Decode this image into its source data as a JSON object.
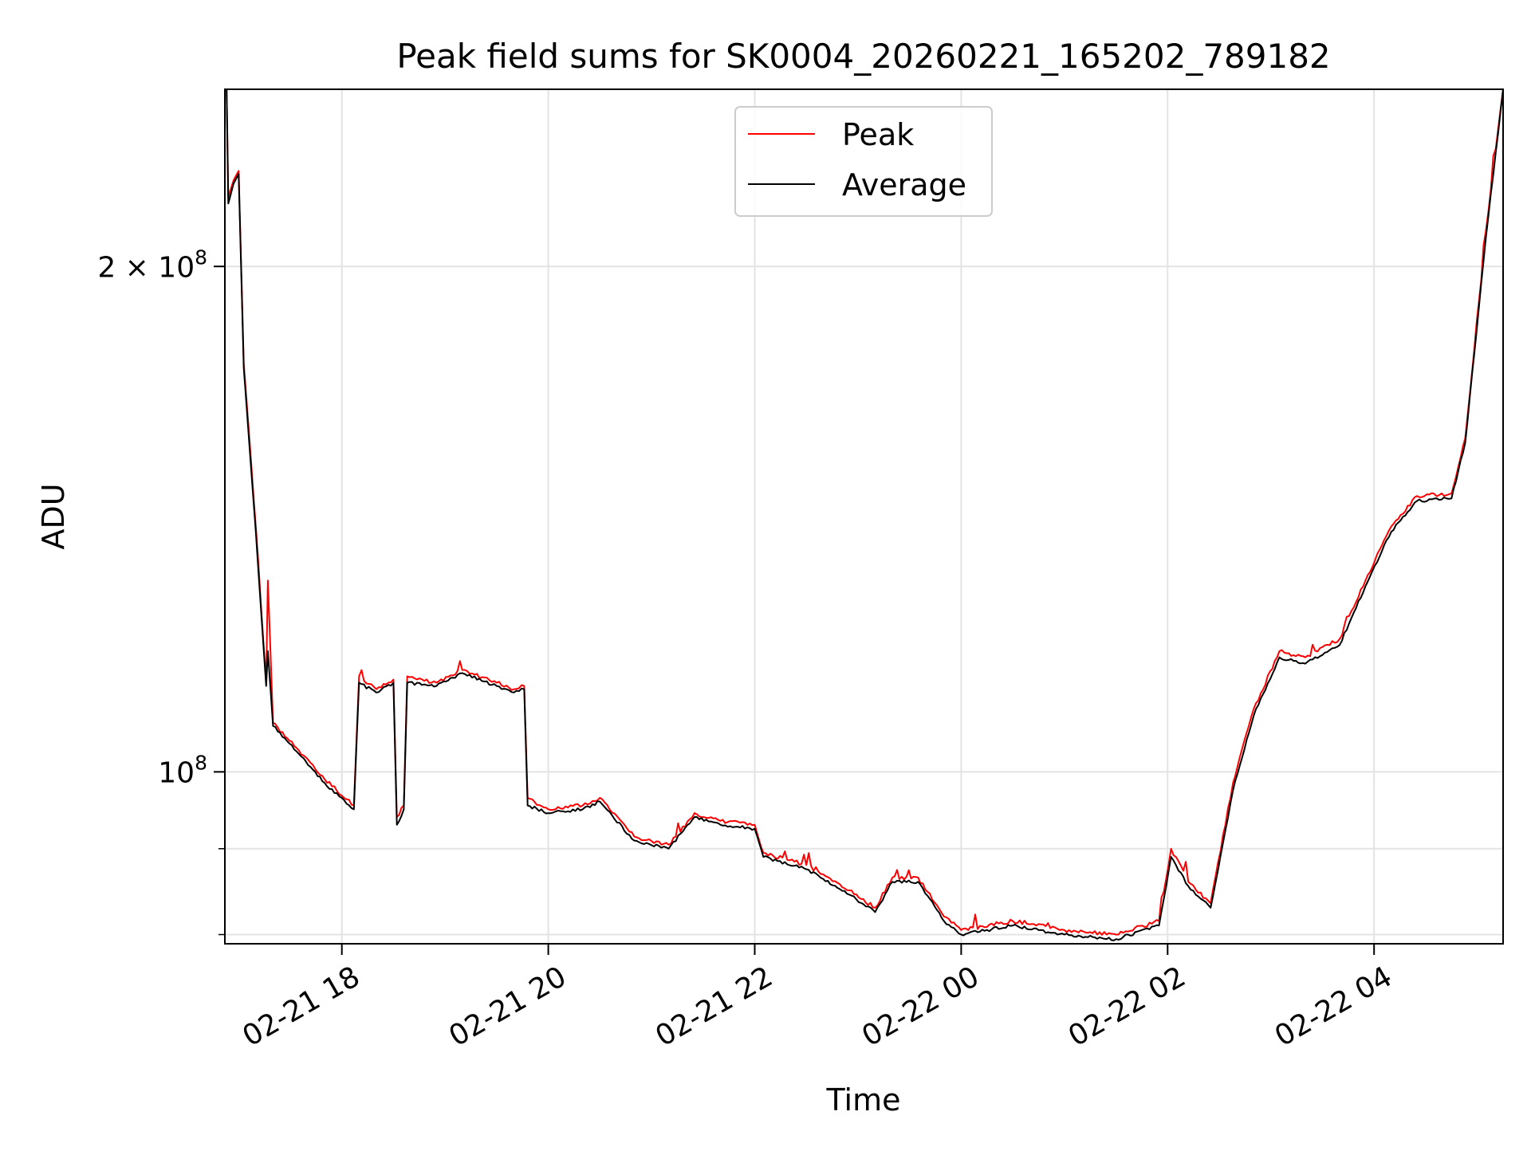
{
  "chart_data": {
    "type": "line",
    "title": "Peak field sums for SK0004_20260221_165202_789182",
    "xlabel": "Time",
    "ylabel": "ADU",
    "y_scale": "log",
    "ylim": [
      79000000,
      255000000
    ],
    "xlim": [
      "2026-02-21 16:52",
      "2026-02-22 05:15"
    ],
    "grid": true,
    "legend_position": "upper center",
    "x_ticks": [
      {
        "t": "2026-02-21 18:00",
        "label": "02-21 18"
      },
      {
        "t": "2026-02-21 20:00",
        "label": "02-21 20"
      },
      {
        "t": "2026-02-21 22:00",
        "label": "02-21 22"
      },
      {
        "t": "2026-02-22 00:00",
        "label": "02-22 00"
      },
      {
        "t": "2026-02-22 02:00",
        "label": "02-22 02"
      },
      {
        "t": "2026-02-22 04:00",
        "label": "02-22 04"
      }
    ],
    "y_major_ticks": [
      {
        "value": 100000000,
        "base": "10",
        "exp": "8"
      },
      {
        "value": 200000000,
        "base": "2 × 10",
        "exp": "8"
      }
    ],
    "y_minor_ticks": [
      90000000,
      80000000
    ],
    "series": [
      {
        "name": "Peak",
        "color": "#ff0000",
        "points": [
          [
            "2026-02-21 16:53",
            255000000
          ],
          [
            "2026-02-21 16:54",
            220000000
          ],
          [
            "2026-02-21 16:57",
            225000000
          ],
          [
            "2026-02-21 17:00",
            228000000
          ],
          [
            "2026-02-21 17:03",
            175000000
          ],
          [
            "2026-02-21 17:10",
            140000000
          ],
          [
            "2026-02-21 17:16",
            113000000
          ],
          [
            "2026-02-21 17:17",
            130000000
          ],
          [
            "2026-02-21 17:20",
            107000000
          ],
          [
            "2026-02-21 17:35",
            103000000
          ],
          [
            "2026-02-21 17:50",
            99000000
          ],
          [
            "2026-02-21 18:07",
            95500000
          ],
          [
            "2026-02-21 18:10",
            114000000
          ],
          [
            "2026-02-21 18:20",
            112000000
          ],
          [
            "2026-02-21 18:30",
            113500000
          ],
          [
            "2026-02-21 18:32",
            94000000
          ],
          [
            "2026-02-21 18:36",
            95500000
          ],
          [
            "2026-02-21 18:38",
            114000000
          ],
          [
            "2026-02-21 18:55",
            113000000
          ],
          [
            "2026-02-21 19:10",
            115000000
          ],
          [
            "2026-02-21 19:30",
            113000000
          ],
          [
            "2026-02-21 19:40",
            112000000
          ],
          [
            "2026-02-21 19:46",
            112500000
          ],
          [
            "2026-02-21 19:48",
            96500000
          ],
          [
            "2026-02-21 20:00",
            95000000
          ],
          [
            "2026-02-21 20:20",
            95500000
          ],
          [
            "2026-02-21 20:30",
            96500000
          ],
          [
            "2026-02-21 20:50",
            91500000
          ],
          [
            "2026-02-21 21:10",
            90500000
          ],
          [
            "2026-02-21 21:25",
            94500000
          ],
          [
            "2026-02-21 21:40",
            93500000
          ],
          [
            "2026-02-21 22:00",
            93000000
          ],
          [
            "2026-02-21 22:05",
            89500000
          ],
          [
            "2026-02-21 22:30",
            88000000
          ],
          [
            "2026-02-21 22:55",
            85000000
          ],
          [
            "2026-02-21 23:10",
            83000000
          ],
          [
            "2026-02-21 23:20",
            86500000
          ],
          [
            "2026-02-21 23:35",
            86500000
          ],
          [
            "2026-02-21 23:50",
            82000000
          ],
          [
            "2026-02-22 00:00",
            80500000
          ],
          [
            "2026-02-22 00:30",
            81500000
          ],
          [
            "2026-02-22 01:00",
            80500000
          ],
          [
            "2026-02-22 01:30",
            80000000
          ],
          [
            "2026-02-22 01:55",
            81500000
          ],
          [
            "2026-02-22 02:02",
            90000000
          ],
          [
            "2026-02-22 02:12",
            86000000
          ],
          [
            "2026-02-22 02:25",
            83500000
          ],
          [
            "2026-02-22 02:38",
            98500000
          ],
          [
            "2026-02-22 02:50",
            109000000
          ],
          [
            "2026-02-22 03:05",
            118000000
          ],
          [
            "2026-02-22 03:20",
            117000000
          ],
          [
            "2026-02-22 03:40",
            120000000
          ],
          [
            "2026-02-22 03:55",
            130000000
          ],
          [
            "2026-02-22 04:10",
            140000000
          ],
          [
            "2026-02-22 04:25",
            146000000
          ],
          [
            "2026-02-22 04:45",
            146500000
          ],
          [
            "2026-02-22 04:53",
            158000000
          ],
          [
            "2026-02-22 05:05",
            210000000
          ],
          [
            "2026-02-22 05:15",
            255000000
          ]
        ]
      },
      {
        "name": "Average",
        "color": "#000000",
        "points": [
          [
            "2026-02-21 16:53",
            255000000
          ],
          [
            "2026-02-21 16:54",
            218000000
          ],
          [
            "2026-02-21 16:57",
            224000000
          ],
          [
            "2026-02-21 17:00",
            227000000
          ],
          [
            "2026-02-21 17:03",
            174000000
          ],
          [
            "2026-02-21 17:10",
            139000000
          ],
          [
            "2026-02-21 17:16",
            112500000
          ],
          [
            "2026-02-21 17:17",
            118000000
          ],
          [
            "2026-02-21 17:20",
            106500000
          ],
          [
            "2026-02-21 17:35",
            102500000
          ],
          [
            "2026-02-21 17:50",
            98500000
          ],
          [
            "2026-02-21 18:07",
            95000000
          ],
          [
            "2026-02-21 18:10",
            113000000
          ],
          [
            "2026-02-21 18:20",
            111500000
          ],
          [
            "2026-02-21 18:30",
            113000000
          ],
          [
            "2026-02-21 18:32",
            93000000
          ],
          [
            "2026-02-21 18:36",
            95000000
          ],
          [
            "2026-02-21 18:38",
            113000000
          ],
          [
            "2026-02-21 18:55",
            112500000
          ],
          [
            "2026-02-21 19:10",
            114500000
          ],
          [
            "2026-02-21 19:30",
            112500000
          ],
          [
            "2026-02-21 19:40",
            111500000
          ],
          [
            "2026-02-21 19:46",
            112000000
          ],
          [
            "2026-02-21 19:48",
            95500000
          ],
          [
            "2026-02-21 20:00",
            94500000
          ],
          [
            "2026-02-21 20:20",
            95000000
          ],
          [
            "2026-02-21 20:30",
            96000000
          ],
          [
            "2026-02-21 20:50",
            91000000
          ],
          [
            "2026-02-21 21:10",
            90000000
          ],
          [
            "2026-02-21 21:25",
            94000000
          ],
          [
            "2026-02-21 21:40",
            93000000
          ],
          [
            "2026-02-21 22:00",
            92500000
          ],
          [
            "2026-02-21 22:05",
            89000000
          ],
          [
            "2026-02-21 22:30",
            87500000
          ],
          [
            "2026-02-21 22:55",
            84500000
          ],
          [
            "2026-02-21 23:10",
            82500000
          ],
          [
            "2026-02-21 23:20",
            86000000
          ],
          [
            "2026-02-21 23:35",
            86000000
          ],
          [
            "2026-02-21 23:50",
            81500000
          ],
          [
            "2026-02-22 00:00",
            80000000
          ],
          [
            "2026-02-22 00:30",
            81000000
          ],
          [
            "2026-02-22 01:00",
            80000000
          ],
          [
            "2026-02-22 01:30",
            79500000
          ],
          [
            "2026-02-22 01:55",
            81000000
          ],
          [
            "2026-02-22 02:02",
            89000000
          ],
          [
            "2026-02-22 02:12",
            85500000
          ],
          [
            "2026-02-22 02:25",
            83000000
          ],
          [
            "2026-02-22 02:38",
            97500000
          ],
          [
            "2026-02-22 02:50",
            108000000
          ],
          [
            "2026-02-22 03:05",
            117000000
          ],
          [
            "2026-02-22 03:20",
            116000000
          ],
          [
            "2026-02-22 03:40",
            119000000
          ],
          [
            "2026-02-22 03:55",
            129000000
          ],
          [
            "2026-02-22 04:10",
            139000000
          ],
          [
            "2026-02-22 04:25",
            145000000
          ],
          [
            "2026-02-22 04:45",
            145500000
          ],
          [
            "2026-02-22 04:53",
            157000000
          ],
          [
            "2026-02-22 05:05",
            208000000
          ],
          [
            "2026-02-22 05:15",
            255000000
          ]
        ]
      }
    ]
  }
}
